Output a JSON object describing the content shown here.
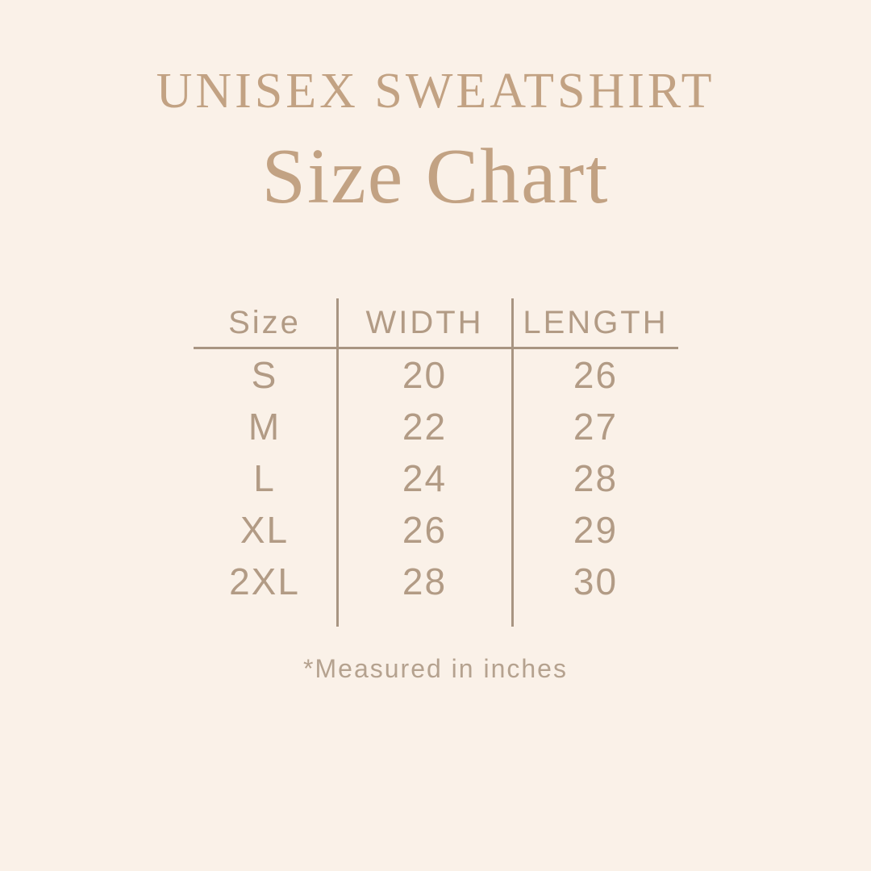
{
  "colors": {
    "background": "#faf1e8",
    "title": "#c2a283",
    "table_text": "#b29b85",
    "line": "#a89582",
    "footnote": "#b5a28f"
  },
  "header": {
    "title": "UNISEX SWEATSHIRT",
    "subtitle": "Size Chart"
  },
  "table": {
    "columns": [
      "Size",
      "WIDTH",
      "LENGTH"
    ],
    "rows": [
      [
        "S",
        "20",
        "26"
      ],
      [
        "M",
        "22",
        "27"
      ],
      [
        "L",
        "24",
        "28"
      ],
      [
        "XL",
        "26",
        "29"
      ],
      [
        "2XL",
        "28",
        "30"
      ]
    ]
  },
  "footnote": "*Measured in inches",
  "chart_data": {
    "type": "table",
    "title": "UNISEX SWEATSHIRT",
    "subtitle": "Size Chart",
    "columns": [
      "Size",
      "WIDTH",
      "LENGTH"
    ],
    "rows": [
      [
        "S",
        20,
        26
      ],
      [
        "M",
        22,
        27
      ],
      [
        "L",
        24,
        28
      ],
      [
        "XL",
        26,
        29
      ],
      [
        "2XL",
        28,
        30
      ]
    ],
    "footnote": "*Measured in inches"
  }
}
